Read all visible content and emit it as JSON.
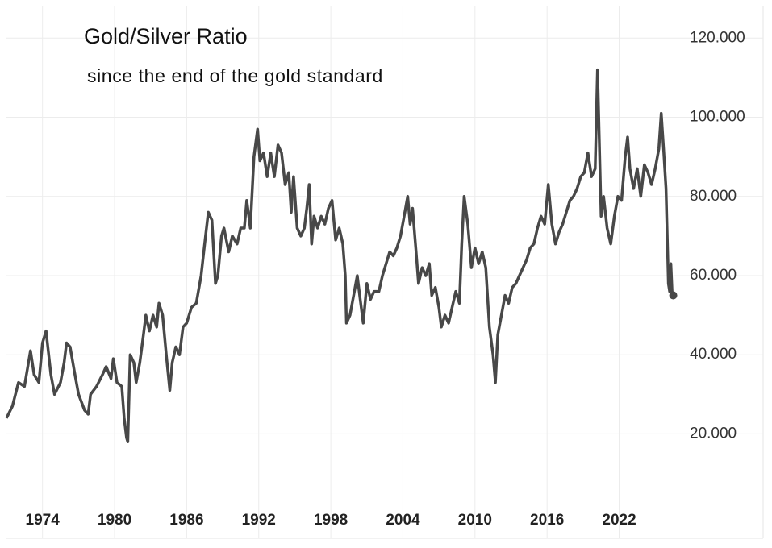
{
  "chart_data": {
    "type": "line",
    "title": "Gold/Silver Ratio",
    "subtitle": "since the end of the gold standard",
    "xlim": [
      1971,
      2027
    ],
    "xticks": [
      1974,
      1980,
      1986,
      1992,
      1998,
      2004,
      2010,
      2016,
      2022
    ],
    "ylim": [
      4,
      128
    ],
    "yticks": [
      {
        "value": 20,
        "label": "20.000"
      },
      {
        "value": 40,
        "label": "40.000"
      },
      {
        "value": 60,
        "label": "60.000"
      },
      {
        "value": 80,
        "label": "80.000"
      },
      {
        "value": 100,
        "label": "100.000"
      },
      {
        "value": 120,
        "label": "120.000"
      }
    ],
    "grid": true,
    "series": [
      {
        "name": "Gold/Silver Ratio",
        "color": "#484848",
        "x": [
          1971.0,
          1971.5,
          1972,
          1972.5,
          1973,
          1973.3,
          1973.7,
          1974,
          1974.3,
          1974.7,
          1975,
          1975.5,
          1975.8,
          1976,
          1976.3,
          1976.7,
          1977,
          1977.5,
          1977.8,
          1978,
          1978.5,
          1979,
          1979.3,
          1979.7,
          1979.9,
          1980.2,
          1980.6,
          1980.8,
          1981.0,
          1981.1,
          1981.3,
          1981.6,
          1981.8,
          1982.1,
          1982.4,
          1982.6,
          1982.9,
          1983.2,
          1983.5,
          1983.7,
          1984.0,
          1984.3,
          1984.6,
          1984.8,
          1985.1,
          1985.4,
          1985.7,
          1986.0,
          1986.4,
          1986.8,
          1987.2,
          1987.5,
          1987.8,
          1988.1,
          1988.4,
          1988.6,
          1988.9,
          1989.1,
          1989.5,
          1989.8,
          1990.2,
          1990.5,
          1990.8,
          1991.0,
          1991.3,
          1991.6,
          1991.9,
          1992.1,
          1992.4,
          1992.7,
          1993.0,
          1993.3,
          1993.6,
          1993.9,
          1994.2,
          1994.5,
          1994.7,
          1994.9,
          1995.2,
          1995.5,
          1995.8,
          1996.0,
          1996.2,
          1996.4,
          1996.6,
          1996.9,
          1997.2,
          1997.5,
          1997.8,
          1998.1,
          1998.4,
          1998.7,
          1999.0,
          1999.2,
          1999.3,
          1999.6,
          1999.9,
          2000.2,
          2000.4,
          2000.7,
          2001.0,
          2001.3,
          2001.6,
          2002.0,
          2002.3,
          2002.6,
          2002.9,
          2003.2,
          2003.5,
          2003.8,
          2004.1,
          2004.4,
          2004.6,
          2004.8,
          2005.1,
          2005.3,
          2005.6,
          2005.9,
          2006.2,
          2006.4,
          2006.7,
          2007.0,
          2007.2,
          2007.5,
          2007.8,
          2008.1,
          2008.4,
          2008.7,
          2008.9,
          2009.1,
          2009.4,
          2009.7,
          2010.0,
          2010.3,
          2010.6,
          2010.9,
          2011.2,
          2011.5,
          2011.7,
          2011.9,
          2012.2,
          2012.5,
          2012.8,
          2013.1,
          2013.4,
          2013.7,
          2014.0,
          2014.3,
          2014.6,
          2014.9,
          2015.2,
          2015.5,
          2015.8,
          2016.1,
          2016.4,
          2016.7,
          2017.0,
          2017.3,
          2017.6,
          2017.9,
          2018.2,
          2018.5,
          2018.8,
          2019.1,
          2019.4,
          2019.7,
          2020.0,
          2020.2,
          2020.3,
          2020.5,
          2020.7,
          2021.0,
          2021.3,
          2021.6,
          2021.9,
          2022.2,
          2022.5,
          2022.7,
          2022.9,
          2023.2,
          2023.5,
          2023.8,
          2024.1,
          2024.4,
          2024.7,
          2025.0,
          2025.3,
          2025.5,
          2025.7,
          2025.9,
          2026.1,
          2026.2,
          2026.3,
          2026.4,
          2026.5
        ],
        "values": [
          24,
          27,
          33,
          32,
          41,
          35,
          33,
          43,
          46,
          35,
          30,
          33,
          38,
          43,
          42,
          35,
          30,
          26,
          25,
          30,
          32,
          35,
          37,
          34,
          39,
          33,
          32,
          24,
          19,
          18,
          40,
          38,
          33,
          38,
          45,
          50,
          46,
          50,
          47,
          53,
          50,
          40,
          31,
          38,
          42,
          40,
          47,
          48,
          52,
          53,
          60,
          68,
          76,
          74,
          58,
          60,
          70,
          72,
          66,
          70,
          68,
          72,
          72,
          79,
          72,
          90,
          97,
          89,
          91,
          85,
          91,
          85,
          93,
          91,
          83,
          86,
          76,
          85,
          72,
          70,
          72,
          77,
          83,
          68,
          75,
          72,
          75,
          73,
          77,
          79,
          69,
          72,
          68,
          60,
          48,
          50,
          55,
          60,
          55,
          48,
          58,
          54,
          56,
          56,
          60,
          63,
          66,
          65,
          67,
          70,
          75,
          80,
          73,
          77,
          66,
          58,
          62,
          60,
          63,
          55,
          57,
          52,
          47,
          50,
          48,
          52,
          56,
          53,
          68,
          80,
          73,
          62,
          67,
          63,
          66,
          62,
          47,
          40,
          33,
          45,
          50,
          55,
          53,
          57,
          58,
          60,
          62,
          64,
          67,
          68,
          72,
          75,
          73,
          83,
          73,
          68,
          71,
          73,
          76,
          79,
          80,
          82,
          85,
          86,
          91,
          85,
          87,
          112,
          100,
          75,
          80,
          72,
          68,
          75,
          80,
          79,
          90,
          95,
          87,
          82,
          87,
          80,
          88,
          86,
          83,
          87,
          92,
          101,
          92,
          82,
          58,
          56,
          63,
          56,
          55
        ]
      }
    ]
  }
}
